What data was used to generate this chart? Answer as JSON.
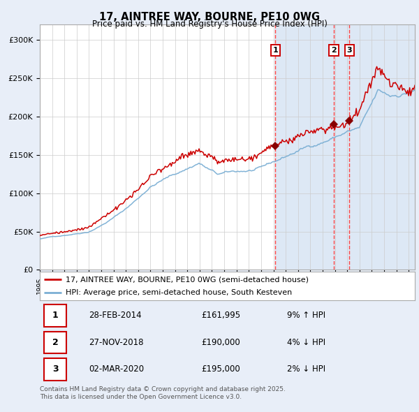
{
  "title": "17, AINTREE WAY, BOURNE, PE10 0WG",
  "subtitle": "Price paid vs. HM Land Registry's House Price Index (HPI)",
  "ylabel_ticks": [
    "£0",
    "£50K",
    "£100K",
    "£150K",
    "£200K",
    "£250K",
    "£300K"
  ],
  "ytick_values": [
    0,
    50000,
    100000,
    150000,
    200000,
    250000,
    300000
  ],
  "ylim": [
    0,
    320000
  ],
  "xlim_start": 1995.0,
  "xlim_end": 2025.5,
  "sale_dates": [
    2014.163,
    2018.91,
    2020.17
  ],
  "sale_prices": [
    161995,
    190000,
    195000
  ],
  "sale_labels": [
    "1",
    "2",
    "3"
  ],
  "sale_info": [
    {
      "label": "1",
      "date": "28-FEB-2014",
      "price": "£161,995",
      "pct": "9% ↑ HPI"
    },
    {
      "label": "2",
      "date": "27-NOV-2018",
      "price": "£190,000",
      "pct": "4% ↓ HPI"
    },
    {
      "label": "3",
      "date": "02-MAR-2020",
      "price": "£195,000",
      "pct": "2% ↓ HPI"
    }
  ],
  "legend_entries": [
    {
      "label": "17, AINTREE WAY, BOURNE, PE10 0WG (semi-detached house)",
      "color": "#cc0000"
    },
    {
      "label": "HPI: Average price, semi-detached house, South Kesteven",
      "color": "#7bafd4"
    }
  ],
  "footer": "Contains HM Land Registry data © Crown copyright and database right 2025.\nThis data is licensed under the Open Government Licence v3.0.",
  "bg_color": "#e8eef8",
  "plot_bg": "#ffffff",
  "grid_color": "#cccccc",
  "vline_color": "#ff4444",
  "shade_color": "#dde8f5"
}
